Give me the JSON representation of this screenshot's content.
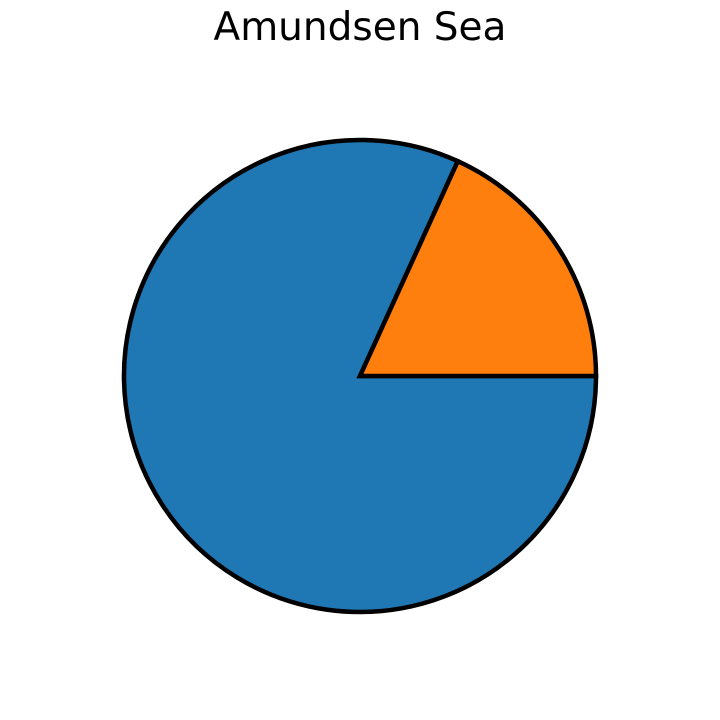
{
  "chart_data": {
    "type": "pie",
    "title": "Amundsen Sea",
    "slices": [
      {
        "value": 81.8,
        "color": "#1f77b4"
      },
      {
        "value": 18.2,
        "color": "#ff7f0e"
      }
    ],
    "start_angle_deg": 0,
    "direction": "clockwise",
    "edge_color": "#000000"
  }
}
